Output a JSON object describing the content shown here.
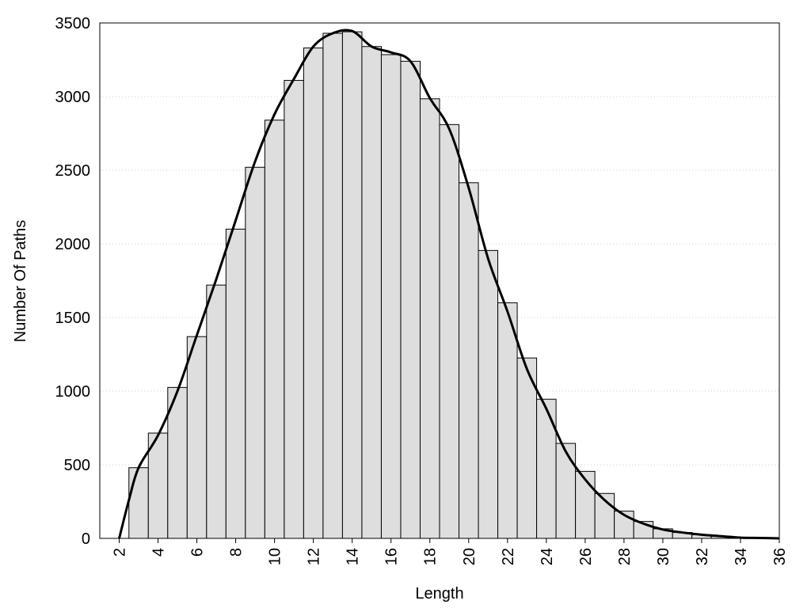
{
  "chart_data": {
    "type": "histogram",
    "xlabel": "Length",
    "ylabel": "Number Of Paths",
    "bins": [
      2.5,
      3.5,
      4.5,
      5.5,
      6.5,
      7.5,
      8.5,
      9.5,
      10.5,
      11.5,
      12.5,
      13.5,
      14.5,
      15.5,
      16.5,
      17.5,
      18.5,
      19.5,
      20.5,
      21.5,
      22.5,
      23.5,
      24.5,
      25.5,
      26.5,
      27.5,
      28.5,
      29.5,
      30.5,
      31.5,
      32.5,
      33.5,
      34.5,
      35.5
    ],
    "values": [
      480,
      715,
      1025,
      1370,
      1720,
      2100,
      2520,
      2840,
      3110,
      3330,
      3430,
      3440,
      3340,
      3285,
      3240,
      2985,
      2810,
      2415,
      1955,
      1600,
      1225,
      945,
      645,
      455,
      305,
      185,
      115,
      65,
      40,
      25,
      15,
      8,
      5
    ],
    "color": "#dedede",
    "curve": {
      "x": [
        2,
        2.5,
        3,
        4,
        5,
        6,
        7,
        8,
        9,
        10,
        11,
        12,
        13,
        14,
        15,
        16,
        17,
        18,
        19,
        20,
        21,
        22,
        23,
        24,
        25,
        26,
        27,
        28,
        29,
        30,
        31,
        32,
        33,
        34,
        35,
        36
      ],
      "values": [
        0,
        260,
        480,
        700,
        1000,
        1380,
        1760,
        2160,
        2560,
        2880,
        3120,
        3340,
        3430,
        3445,
        3340,
        3300,
        3240,
        2990,
        2780,
        2380,
        1900,
        1540,
        1150,
        880,
        590,
        400,
        260,
        160,
        100,
        60,
        40,
        25,
        15,
        5,
        3,
        0
      ],
      "color": "#000000"
    },
    "xlim": [
      1,
      36
    ],
    "ylim": [
      0,
      3500
    ],
    "xticks": [
      2,
      4,
      6,
      8,
      10,
      12,
      14,
      16,
      18,
      20,
      22,
      24,
      26,
      28,
      30,
      32,
      34,
      36
    ],
    "yticks": [
      0,
      500,
      1000,
      1500,
      2000,
      2500,
      3000,
      3500
    ],
    "grid": true
  }
}
